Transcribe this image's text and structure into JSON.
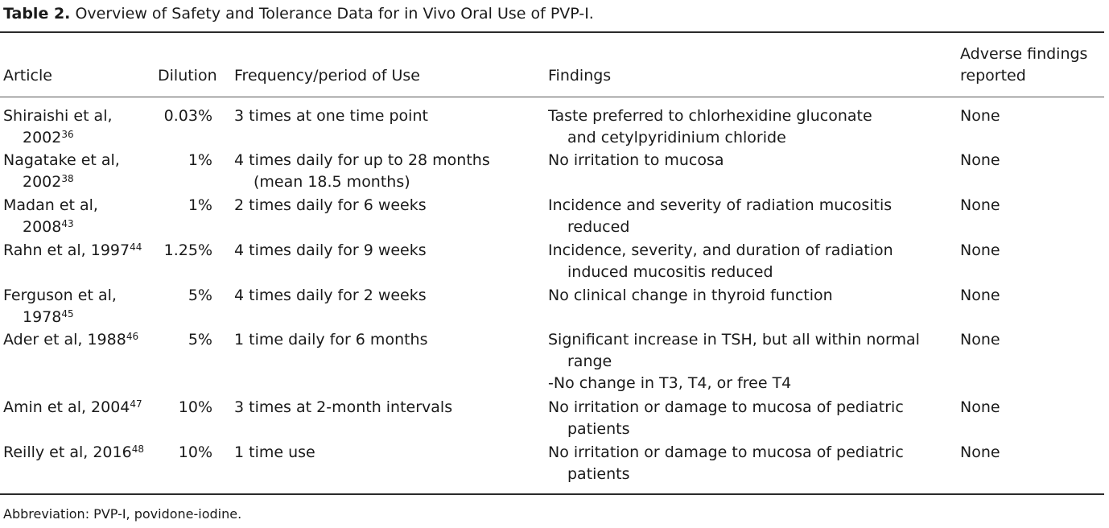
{
  "caption": {
    "label": "Table 2.",
    "text": "Overview of Safety and Tolerance Data for in Vivo Oral Use of PVP-I."
  },
  "headers": {
    "article": "Article",
    "dilution": "Dilution",
    "frequency": "Frequency/period of Use",
    "findings": "Findings",
    "adverse_line1": "Adverse findings",
    "adverse_line2": "reported"
  },
  "rows": [
    {
      "article_line1": "Shiraishi et al,",
      "article_line2": "2002",
      "ref": "36",
      "dilution": "0.03%",
      "frequency_line1": "3 times at one time point",
      "frequency_line2": "",
      "findings_line1": "Taste preferred to chlorhexidine gluconate",
      "findings_line2": "and cetylpyridinium chloride",
      "findings_line3": "",
      "findings_line4": "",
      "adverse": "None"
    },
    {
      "article_line1": "Nagatake et al,",
      "article_line2": "2002",
      "ref": "38",
      "dilution": "1%",
      "frequency_line1": "4 times daily for up to 28 months",
      "frequency_line2": "(mean 18.5 months)",
      "findings_line1": "No irritation to mucosa",
      "findings_line2": "",
      "findings_line3": "",
      "findings_line4": "",
      "adverse": "None"
    },
    {
      "article_line1": "Madan et al,",
      "article_line2": "2008",
      "ref": "43",
      "dilution": "1%",
      "frequency_line1": "2 times daily for 6 weeks",
      "frequency_line2": "",
      "findings_line1": "Incidence and severity of radiation mucositis",
      "findings_line2": "reduced",
      "findings_line3": "",
      "findings_line4": "",
      "adverse": "None"
    },
    {
      "article_line1": "Rahn et al, 1997",
      "article_line2": "",
      "ref": "44",
      "dilution": "1.25%",
      "frequency_line1": "4 times daily for 9 weeks",
      "frequency_line2": "",
      "findings_line1": "Incidence, severity, and duration of radiation",
      "findings_line2": "induced mucositis reduced",
      "findings_line3": "",
      "findings_line4": "",
      "adverse": "None"
    },
    {
      "article_line1": "Ferguson et al,",
      "article_line2": "1978",
      "ref": "45",
      "dilution": "5%",
      "frequency_line1": "4 times daily for 2 weeks",
      "frequency_line2": "",
      "findings_line1": "No clinical change in thyroid function",
      "findings_line2": "",
      "findings_line3": "",
      "findings_line4": "",
      "adverse": "None"
    },
    {
      "article_line1": "Ader et al, 1988",
      "article_line2": "",
      "ref": "46",
      "dilution": "5%",
      "frequency_line1": "1 time daily for 6 months",
      "frequency_line2": "",
      "findings_line1": "Significant increase in TSH, but all within normal",
      "findings_line2": "range",
      "findings_line3": "-No change in T3, T4, or free T4",
      "findings_line4": "",
      "adverse": "None"
    },
    {
      "article_line1": "Amin et al, 2004",
      "article_line2": "",
      "ref": "47",
      "dilution": "10%",
      "frequency_line1": "3 times at 2-month intervals",
      "frequency_line2": "",
      "findings_line1": "No irritation or damage to mucosa of pediatric",
      "findings_line2": "patients",
      "findings_line3": "",
      "findings_line4": "",
      "adverse": "None"
    },
    {
      "article_line1": "Reilly et al, 2016",
      "article_line2": "",
      "ref": "48",
      "dilution": "10%",
      "frequency_line1": "1 time use",
      "frequency_line2": "",
      "findings_line1": "No irritation or damage to mucosa of pediatric",
      "findings_line2": "patients",
      "findings_line3": "",
      "findings_line4": "",
      "adverse": "None"
    }
  ],
  "footnote": "Abbreviation: PVP-I, povidone-iodine."
}
